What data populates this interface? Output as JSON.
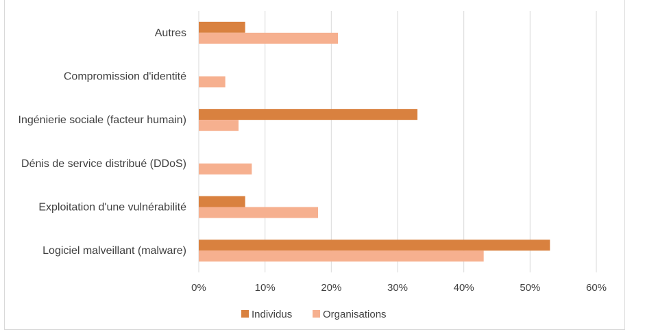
{
  "chart_data": {
    "type": "bar",
    "orientation": "horizontal",
    "categories": [
      "Autres",
      "Compromission d'identité",
      "Ingénierie sociale (facteur humain)",
      "Dénis de service distribué (DDoS)",
      "Exploitation d'une vulnérabilité",
      "Logiciel malveillant (malware)"
    ],
    "series": [
      {
        "name": "Individus",
        "color": "#d9813f",
        "values": [
          7,
          0,
          33,
          0,
          7,
          53
        ]
      },
      {
        "name": "Organisations",
        "color": "#f6b08f",
        "values": [
          21,
          4,
          6,
          8,
          18,
          43
        ]
      }
    ],
    "xlim": [
      0,
      60
    ],
    "xticks": [
      "0%",
      "10%",
      "20%",
      "30%",
      "40%",
      "50%",
      "60%"
    ],
    "grid": "vertical",
    "legend": "bottom"
  }
}
